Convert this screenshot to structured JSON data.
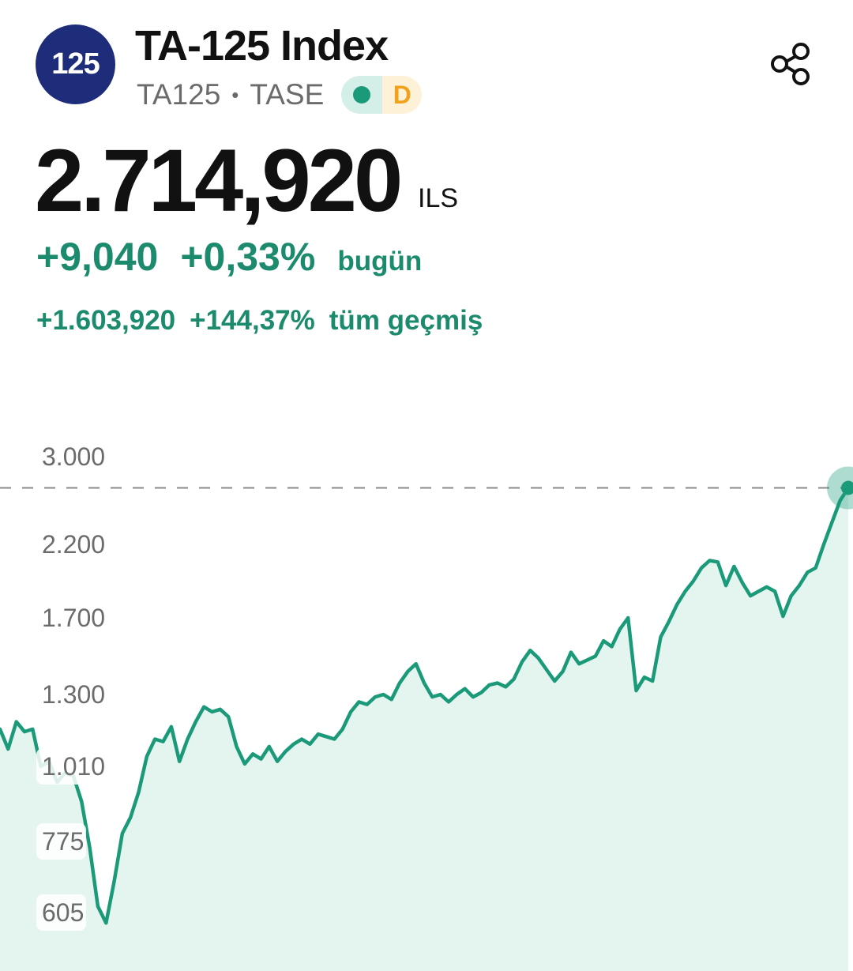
{
  "header": {
    "logo_text": "125",
    "title": "TA-125 Index",
    "symbol": "TA125",
    "exchange": "TASE",
    "badge_letter": "D",
    "colors": {
      "logo_bg": "#1e2d7a",
      "live_dot": "#1b9a7a",
      "badge_d": "#f0a11d"
    },
    "share_icon": "share-icon"
  },
  "quote": {
    "price": "2.714,920",
    "currency": "ILS",
    "today_change": "+9,040",
    "today_percent": "+0,33%",
    "today_label": "bugün",
    "alltime_change": "+1.603,920",
    "alltime_percent": "+144,37%",
    "alltime_label": "tüm geçmiş",
    "positive_color": "#1b8a6d"
  },
  "chart_data": {
    "type": "area",
    "title": "",
    "xlabel": "",
    "ylabel": "",
    "scale": "nonlinear (log-like)",
    "y_ticks": [
      3000,
      2200,
      1700,
      1300,
      1010,
      775,
      605
    ],
    "y_tick_labels": [
      "3.000",
      "2.200",
      "1.700",
      "1.300",
      "1.010",
      "775",
      "605"
    ],
    "reference_line": {
      "value": 2714.92,
      "style": "dashed"
    },
    "current_point": {
      "value": 2714.92
    },
    "line_color": "#1b9a7a",
    "fill_color": "#e4f4ef",
    "grid": false,
    "legend": "none",
    "series": [
      {
        "values": [
          1160,
          1080,
          1190,
          1150,
          1160,
          1010,
          1030,
          960,
          990,
          980,
          900,
          760,
          620,
          580,
          680,
          800,
          850,
          930,
          1050,
          1120,
          1110,
          1170,
          1030,
          1120,
          1190,
          1250,
          1230,
          1240,
          1210,
          1090,
          1020,
          1060,
          1040,
          1090,
          1030,
          1070,
          1100,
          1120,
          1100,
          1140,
          1130,
          1120,
          1160,
          1230,
          1270,
          1260,
          1290,
          1300,
          1280,
          1360,
          1420,
          1460,
          1360,
          1290,
          1300,
          1270,
          1300,
          1330,
          1290,
          1310,
          1350,
          1360,
          1340,
          1380,
          1470,
          1530,
          1490,
          1430,
          1370,
          1420,
          1520,
          1460,
          1480,
          1500,
          1580,
          1550,
          1640,
          1700,
          1320,
          1390,
          1370,
          1600,
          1680,
          1790,
          1880,
          1950,
          2040,
          2090,
          2080,
          1920,
          2050,
          1940,
          1850,
          1880,
          1910,
          1880,
          1710,
          1850,
          1920,
          2010,
          2040,
          2200,
          2400,
          2600,
          2714.92
        ]
      }
    ]
  }
}
